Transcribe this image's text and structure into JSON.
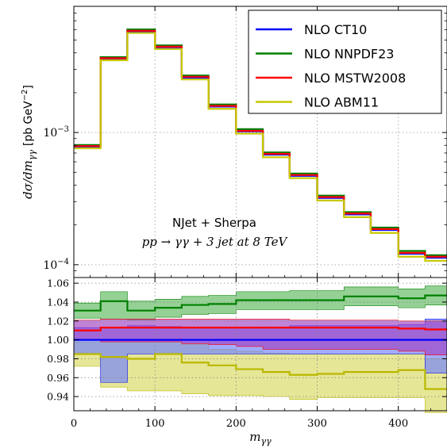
{
  "chart_data": [
    {
      "type": "line",
      "subtype": "histogram-step",
      "panel": "main",
      "x_edges": [
        0,
        33,
        66,
        100,
        133,
        166,
        200,
        233,
        266,
        300,
        333,
        366,
        400,
        433,
        460
      ],
      "y_scale": "log",
      "ylim": [
        8e-05,
        0.009
      ],
      "xlim": [
        0,
        460
      ],
      "ylabel_prefix": "dσ/dm",
      "ylabel_sub": "γγ",
      "ylabel_units": "[pb GeV",
      "ylabel_units_sup": "−2",
      "ylabel_units_close": "]",
      "yticks": [
        {
          "value": 0.001,
          "base": "10",
          "exp": "−3"
        },
        {
          "value": 0.0001,
          "base": "10",
          "exp": "−4"
        }
      ],
      "grid": true,
      "legend_position": "top-right",
      "annotation_line1": "NJet + Sherpa",
      "annotation_line2_pre": "pp → γγ + 3 jet at 8 TeV",
      "series": [
        {
          "name": "NLO CT10",
          "color": "#0000ff",
          "values": [
            0.00078,
            0.0036,
            0.0058,
            0.0044,
            0.0026,
            0.00157,
            0.00102,
            0.00068,
            0.00047,
            0.00032,
            0.00024,
            0.000183,
            0.000121,
            0.000113
          ]
        },
        {
          "name": "NLO NNPDF23",
          "color": "#008000",
          "values": [
            0.000805,
            0.00372,
            0.00602,
            0.00456,
            0.0027,
            0.00163,
            0.00106,
            0.000707,
            0.000489,
            0.000333,
            0.00025,
            0.000191,
            0.000127,
            0.000118
          ]
        },
        {
          "name": "NLO MSTW2008",
          "color": "#ff0000",
          "values": [
            0.00079,
            0.00365,
            0.00588,
            0.00446,
            0.00264,
            0.00159,
            0.00103,
            0.00069,
            0.000477,
            0.000325,
            0.000244,
            0.000186,
            0.000123,
            0.000115
          ]
        },
        {
          "name": "NLO ABM11",
          "color": "#c8c800",
          "values": [
            0.00076,
            0.00352,
            0.00566,
            0.00428,
            0.00252,
            0.00151,
            0.00098,
            0.00065,
            0.000452,
            0.000306,
            0.000229,
            0.000174,
            0.000115,
            0.000107
          ]
        }
      ]
    },
    {
      "type": "line",
      "subtype": "ratio-step-with-bands",
      "panel": "ratio",
      "x_edges": [
        0,
        33,
        66,
        100,
        133,
        166,
        200,
        233,
        266,
        300,
        333,
        366,
        400,
        433,
        460
      ],
      "xlim": [
        0,
        460
      ],
      "ylim": [
        0.925,
        1.066
      ],
      "xlabel": "m",
      "xlabel_sub": "γγ",
      "xticks": [
        "0",
        "100",
        "200",
        "300",
        "400"
      ],
      "xtick_values": [
        0,
        100,
        200,
        300,
        400
      ],
      "yticks": [
        "0.94",
        "0.96",
        "0.98",
        "1.00",
        "1.02",
        "1.04",
        "1.06"
      ],
      "ytick_values": [
        0.94,
        0.96,
        0.98,
        1.0,
        1.02,
        1.04,
        1.06
      ],
      "grid": true,
      "series": [
        {
          "name": "NLO CT10",
          "color": "#0000ff",
          "band_color": "#7080ff",
          "central": [
            1.0,
            1.0,
            1.0,
            1.0,
            1.0,
            1.0,
            1.0,
            1.0,
            1.0,
            1.0,
            1.0,
            1.0,
            1.0,
            1.0
          ],
          "upper": [
            1.013,
            1.013,
            1.015,
            1.014,
            1.013,
            1.013,
            1.013,
            1.013,
            1.015,
            1.015,
            1.015,
            1.015,
            1.016,
            1.022
          ],
          "lower": [
            0.985,
            0.955,
            0.985,
            0.985,
            0.985,
            0.985,
            0.985,
            0.985,
            0.985,
            0.985,
            0.985,
            0.985,
            0.985,
            0.965
          ]
        },
        {
          "name": "NLO NNPDF23",
          "color": "#008000",
          "band_color": "#5cb85c",
          "central": [
            1.031,
            1.041,
            1.031,
            1.034,
            1.037,
            1.038,
            1.042,
            1.042,
            1.042,
            1.042,
            1.046,
            1.046,
            1.044,
            1.047
          ],
          "upper": [
            1.039,
            1.051,
            1.041,
            1.043,
            1.046,
            1.047,
            1.051,
            1.051,
            1.052,
            1.052,
            1.056,
            1.056,
            1.054,
            1.057
          ],
          "lower": [
            1.023,
            1.022,
            1.021,
            1.024,
            1.027,
            1.028,
            1.032,
            1.032,
            1.032,
            1.032,
            1.036,
            1.036,
            1.034,
            1.037
          ]
        },
        {
          "name": "NLO MSTW2008",
          "color": "#ff0000",
          "band_color": "#a040c0",
          "central": [
            1.01,
            1.013,
            1.013,
            1.013,
            1.013,
            1.013,
            1.013,
            1.013,
            1.013,
            1.013,
            1.013,
            1.013,
            1.012,
            1.011
          ],
          "upper": [
            1.021,
            1.022,
            1.022,
            1.022,
            1.022,
            1.022,
            1.022,
            1.022,
            1.021,
            1.021,
            1.021,
            1.021,
            1.02,
            1.02
          ],
          "lower": [
            1.0,
            0.998,
            0.998,
            0.998,
            0.996,
            0.995,
            0.993,
            0.99,
            0.99,
            0.99,
            0.99,
            0.99,
            0.988,
            0.984
          ]
        },
        {
          "name": "NLO ABM11",
          "color": "#b8b800",
          "band_color": "#d8d860",
          "central": [
            0.985,
            0.982,
            0.98,
            0.985,
            0.976,
            0.973,
            0.969,
            0.966,
            0.963,
            0.964,
            0.966,
            0.966,
            0.968,
            0.948
          ],
          "upper": [
            0.998,
            0.998,
            0.998,
            0.998,
            0.995,
            0.99,
            0.988,
            0.986,
            0.985,
            0.985,
            0.985,
            0.985,
            0.985,
            0.98
          ],
          "lower": [
            0.972,
            0.95,
            0.946,
            0.946,
            0.943,
            0.941,
            0.941,
            0.94,
            0.937,
            0.939,
            0.939,
            0.939,
            0.939,
            0.923
          ]
        }
      ]
    }
  ]
}
